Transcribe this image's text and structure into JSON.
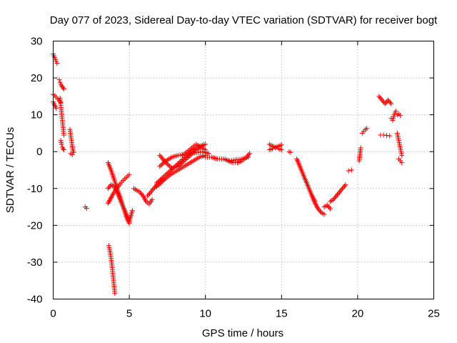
{
  "chart_data": {
    "type": "scatter",
    "title": "Day 077 of 2023, Sidereal Day-to-day VTEC variation (SDTVAR) for receiver bogt",
    "xlabel": "GPS time / hours",
    "ylabel": "SDTVAR / TECUs",
    "xlim": [
      0,
      25
    ],
    "ylim": [
      -40,
      30
    ],
    "xticks": [
      0,
      5,
      10,
      15,
      20,
      25
    ],
    "yticks": [
      -40,
      -30,
      -20,
      -10,
      0,
      10,
      20,
      30
    ],
    "xtick_labels": [
      "0",
      "5",
      "10",
      "15",
      "20",
      "25"
    ],
    "ytick_labels": [
      "-40",
      "-30",
      "-20",
      "-10",
      "0",
      "10",
      "20",
      "30"
    ],
    "grid": true,
    "marker": "+",
    "color": "#ff0000",
    "series": [
      {
        "name": "tracks",
        "segments": [
          {
            "x": [
              0.0,
              0.05,
              0.1,
              0.15,
              0.2,
              0.25
            ],
            "y": [
              26.5,
              26.0,
              25.5,
              25.0,
              24.5,
              24.0
            ]
          },
          {
            "x": [
              0.0,
              0.1,
              0.2,
              0.3,
              0.4,
              0.5
            ],
            "y": [
              15.5,
              15.2,
              14.8,
              14.3,
              13.8,
              13.3
            ]
          },
          {
            "x": [
              0.0,
              0.05,
              0.1,
              0.15,
              0.2
            ],
            "y": [
              13.5,
              13.0,
              12.6,
              12.2,
              11.8
            ]
          },
          {
            "x": [
              0.4,
              0.45,
              0.5,
              0.55,
              0.6,
              0.65,
              0.7
            ],
            "y": [
              19.5,
              18.8,
              18.3,
              17.9,
              17.6,
              17.3,
              17.0
            ]
          },
          {
            "x": [
              0.45,
              0.5,
              0.55,
              0.6,
              0.65,
              0.7
            ],
            "y": [
              14.5,
              12.5,
              10.5,
              8.5,
              6.5,
              4.5
            ]
          },
          {
            "x": [
              0.5,
              0.55,
              0.6,
              0.65,
              0.7
            ],
            "y": [
              3.0,
              2.0,
              1.2,
              0.8,
              0.5
            ]
          },
          {
            "x": [
              1.1,
              1.15,
              1.2,
              1.25,
              1.3
            ],
            "y": [
              6.0,
              4.5,
              3.0,
              1.5,
              0.2
            ]
          },
          {
            "x": [
              1.15,
              1.25,
              1.35
            ],
            "y": [
              -0.5,
              -0.8,
              -0.2
            ]
          },
          {
            "x": [
              2.1,
              2.2
            ],
            "y": [
              -15.0,
              -15.4
            ]
          },
          {
            "x": [
              3.65,
              3.7,
              3.75,
              3.8,
              3.85,
              3.9,
              3.95,
              4.0,
              4.05
            ],
            "y": [
              -25.5,
              -26.5,
              -27.5,
              -29.0,
              -30.5,
              -32.5,
              -34.5,
              -36.5,
              -38.5
            ]
          },
          {
            "x": [
              3.6,
              3.8,
              4.0,
              4.2,
              4.4,
              4.6,
              4.8,
              5.0
            ],
            "y": [
              -14.0,
              -12.5,
              -11.0,
              -9.8,
              -8.7,
              -7.8,
              -7.0,
              -6.2
            ]
          },
          {
            "x": [
              3.6,
              3.8,
              4.0,
              4.2,
              4.4,
              4.6,
              4.8,
              5.0
            ],
            "y": [
              -3.0,
              -5.0,
              -7.5,
              -10.0,
              -12.5,
              -15.0,
              -17.5,
              -19.5
            ]
          },
          {
            "x": [
              3.6,
              3.8,
              4.0,
              4.2,
              4.4,
              4.6,
              4.8,
              5.0,
              5.2
            ],
            "y": [
              -10.0,
              -9.0,
              -9.5,
              -11.0,
              -13.0,
              -15.0,
              -17.0,
              -19.0,
              -16.0
            ]
          },
          {
            "x": [
              5.3,
              5.5,
              5.7,
              5.9,
              6.1,
              6.3,
              6.5
            ],
            "y": [
              -10.0,
              -10.5,
              -11.0,
              -12.0,
              -13.5,
              -14.2,
              -13.0
            ]
          },
          {
            "x": [
              6.2,
              6.4,
              6.6,
              6.8,
              7.0,
              7.2
            ],
            "y": [
              -12.0,
              -11.0,
              -10.0,
              -9.0,
              -8.2,
              -7.5
            ]
          },
          {
            "x": [
              6.8,
              7.2,
              7.6,
              8.0,
              8.4,
              8.8,
              9.2,
              9.6,
              10.0
            ],
            "y": [
              -8.5,
              -7.0,
              -5.5,
              -4.0,
              -2.5,
              -1.0,
              0.5,
              1.5,
              2.0
            ]
          },
          {
            "x": [
              6.8,
              7.2,
              7.6,
              8.0,
              8.4,
              8.8,
              9.2,
              9.6,
              10.0
            ],
            "y": [
              -9.5,
              -8.0,
              -6.5,
              -5.5,
              -4.5,
              -3.5,
              -2.5,
              -1.5,
              -1.0
            ]
          },
          {
            "x": [
              7.0,
              7.4,
              7.8,
              8.2,
              8.6,
              9.0,
              9.4,
              9.8
            ],
            "y": [
              -1.0,
              -3.0,
              -4.5,
              -4.0,
              -2.5,
              -1.0,
              0.5,
              1.5
            ]
          },
          {
            "x": [
              7.0,
              7.4,
              7.8,
              8.2,
              8.6,
              9.0,
              9.4,
              9.8,
              10.2
            ],
            "y": [
              -4.0,
              -2.5,
              -1.5,
              -1.0,
              -0.7,
              -0.5,
              -0.3,
              0.0,
              -0.5
            ]
          },
          {
            "x": [
              8.5,
              8.8,
              9.1,
              9.4,
              9.7,
              10.0
            ],
            "y": [
              -1.0,
              0.0,
              1.0,
              2.0,
              1.2,
              0.5
            ]
          },
          {
            "x": [
              10.0,
              10.4,
              10.8,
              11.2,
              11.6,
              12.0,
              12.4,
              12.8
            ],
            "y": [
              -1.5,
              -1.5,
              -2.0,
              -2.0,
              -2.5,
              -2.2,
              -2.0,
              -1.5
            ]
          },
          {
            "x": [
              11.5,
              11.8,
              12.1,
              12.4,
              12.7,
              12.9
            ],
            "y": [
              -2.5,
              -3.0,
              -3.0,
              -2.5,
              -1.5,
              -0.5
            ]
          },
          {
            "x": [
              14.2,
              14.4,
              14.6,
              14.8,
              15.0
            ],
            "y": [
              2.0,
              1.5,
              1.2,
              1.5,
              1.8
            ]
          },
          {
            "x": [
              14.2,
              14.4,
              14.6,
              14.8,
              15.0
            ],
            "y": [
              0.5,
              0.8,
              1.0,
              0.8,
              0.5
            ]
          },
          {
            "x": [
              15.5,
              15.6
            ],
            "y": [
              0.0,
              -0.2
            ]
          },
          {
            "x": [
              16.0,
              16.2,
              16.4,
              16.6,
              16.8,
              17.0,
              17.2
            ],
            "y": [
              -2.0,
              -4.0,
              -6.0,
              -8.0,
              -10.0,
              -12.0,
              -13.5
            ]
          },
          {
            "x": [
              17.0,
              17.2,
              17.4,
              17.6,
              17.8
            ],
            "y": [
              -12.0,
              -14.0,
              -15.5,
              -16.5,
              -17.0
            ]
          },
          {
            "x": [
              17.8,
              18.0,
              18.2
            ],
            "y": [
              -15.0,
              -14.5,
              -15.5
            ]
          },
          {
            "x": [
              18.2,
              18.4,
              18.6,
              18.8,
              19.0,
              19.2
            ],
            "y": [
              -13.5,
              -13.0,
              -12.0,
              -11.0,
              -10.0,
              -9.0
            ]
          },
          {
            "x": [
              19.4,
              19.6
            ],
            "y": [
              -5.2,
              -5.0
            ]
          },
          {
            "x": [
              20.1,
              20.2
            ],
            "y": [
              -2.5,
              1.0
            ]
          },
          {
            "x": [
              20.3,
              20.4,
              20.5,
              20.6
            ],
            "y": [
              5.0,
              5.5,
              6.0,
              6.3
            ]
          },
          {
            "x": [
              21.4,
              21.6,
              21.8,
              22.0,
              22.2
            ],
            "y": [
              15.0,
              14.0,
              13.0,
              14.0,
              13.0
            ]
          },
          {
            "x": [
              21.5,
              21.7,
              21.9,
              22.1
            ],
            "y": [
              4.5,
              4.5,
              4.4,
              4.3
            ]
          },
          {
            "x": [
              22.2,
              22.3,
              22.4,
              22.5
            ],
            "y": [
              9.0,
              8.5,
              10.0,
              11.0
            ]
          },
          {
            "x": [
              22.6,
              22.7,
              22.8
            ],
            "y": [
              10.0,
              10.2,
              9.8
            ]
          },
          {
            "x": [
              22.6,
              22.7,
              22.8,
              22.9
            ],
            "y": [
              5.0,
              3.0,
              1.0,
              -1.0
            ]
          },
          {
            "x": [
              22.7,
              22.8,
              22.9
            ],
            "y": [
              -2.0,
              -2.5,
              -3.0
            ]
          }
        ]
      }
    ]
  }
}
